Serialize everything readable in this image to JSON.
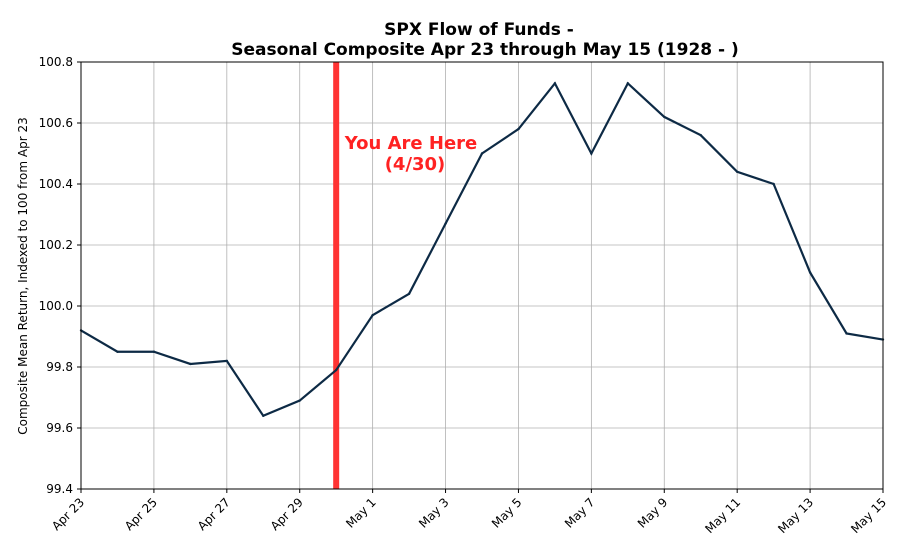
{
  "chart_data": {
    "type": "line",
    "title_lines": [
      "SPX Flow of Funds -",
      "Seasonal Composite Apr 23 through May 15 (1928 - )"
    ],
    "xlabel": "",
    "ylabel": "Composite Mean Return, Indexed to 100 from Apr 23",
    "ylim": [
      99.4,
      100.8
    ],
    "yticks": [
      "99.4",
      "99.6",
      "99.8",
      "100.0",
      "100.2",
      "100.4",
      "100.6",
      "100.8"
    ],
    "xtick_labels": [
      "Apr 23",
      "Apr 25",
      "Apr 27",
      "Apr 29",
      "May 1",
      "May 3",
      "May 5",
      "May 7",
      "May 9",
      "May 11",
      "May 13",
      "May 15"
    ],
    "x": [
      "Apr 23",
      "Apr 24",
      "Apr 25",
      "Apr 26",
      "Apr 27",
      "Apr 28",
      "Apr 29",
      "Apr 30",
      "May 1",
      "May 2",
      "May 3",
      "May 4",
      "May 5",
      "May 6",
      "May 7",
      "May 8",
      "May 9",
      "May 10",
      "May 11",
      "May 12",
      "May 13",
      "May 14",
      "May 15"
    ],
    "series": [
      {
        "color": "#0d2a45",
        "values": [
          99.92,
          99.85,
          99.85,
          99.81,
          99.82,
          99.64,
          99.69,
          99.79,
          99.97,
          100.04,
          100.27,
          100.5,
          100.58,
          100.73,
          100.5,
          100.73,
          100.62,
          100.56,
          100.44,
          100.4,
          100.11,
          99.91,
          99.89
        ]
      }
    ],
    "marker": {
      "x": "Apr 30",
      "color": "#ff3333"
    },
    "annotation": {
      "line1": "You Are Here",
      "line2": "(4/30)",
      "color": "#ff2222"
    },
    "grid": true
  }
}
